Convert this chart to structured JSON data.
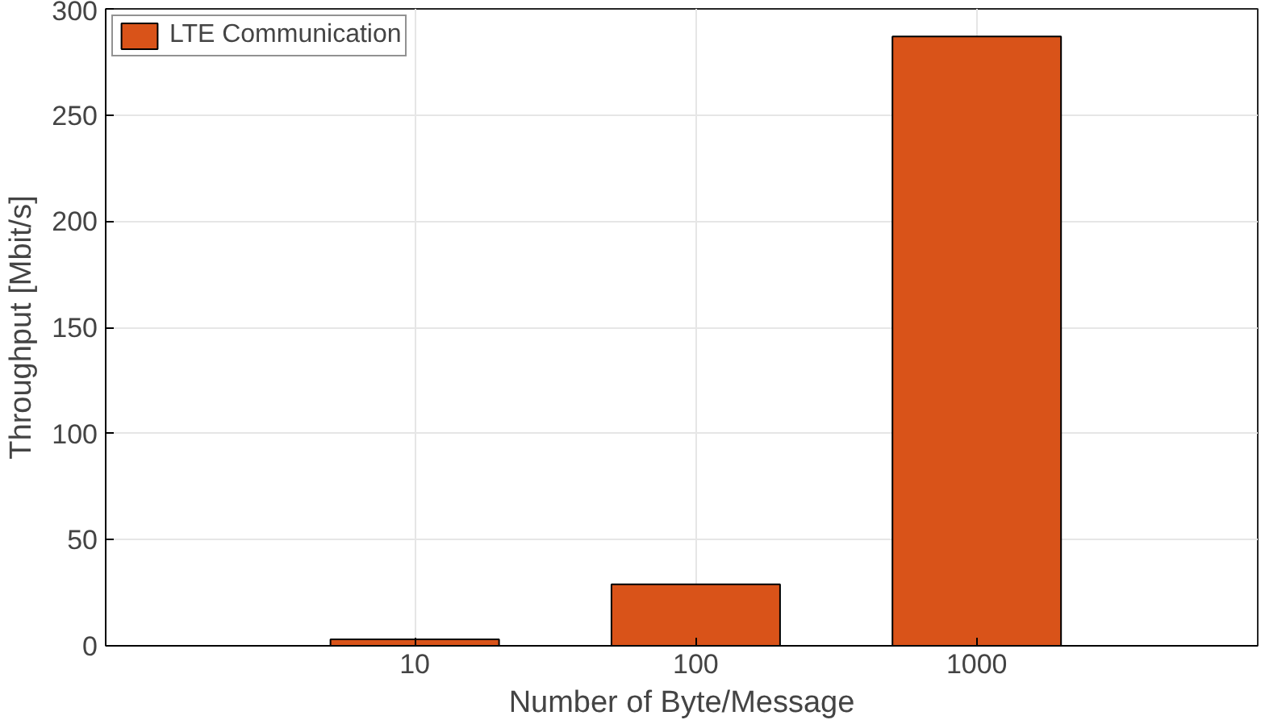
{
  "chart_data": {
    "type": "bar",
    "xlabel": "Number of Byte/Message",
    "ylabel": "Throughput [Mbit/s]",
    "categories": [
      "10",
      "100",
      "1000"
    ],
    "series": [
      {
        "name": "LTE Communication",
        "color": "#d95319",
        "values": [
          3,
          29,
          287
        ]
      }
    ],
    "ylim": [
      0,
      300
    ],
    "yticks": [
      0,
      50,
      100,
      150,
      200,
      250,
      300
    ],
    "grid": true,
    "legend": "top left"
  }
}
